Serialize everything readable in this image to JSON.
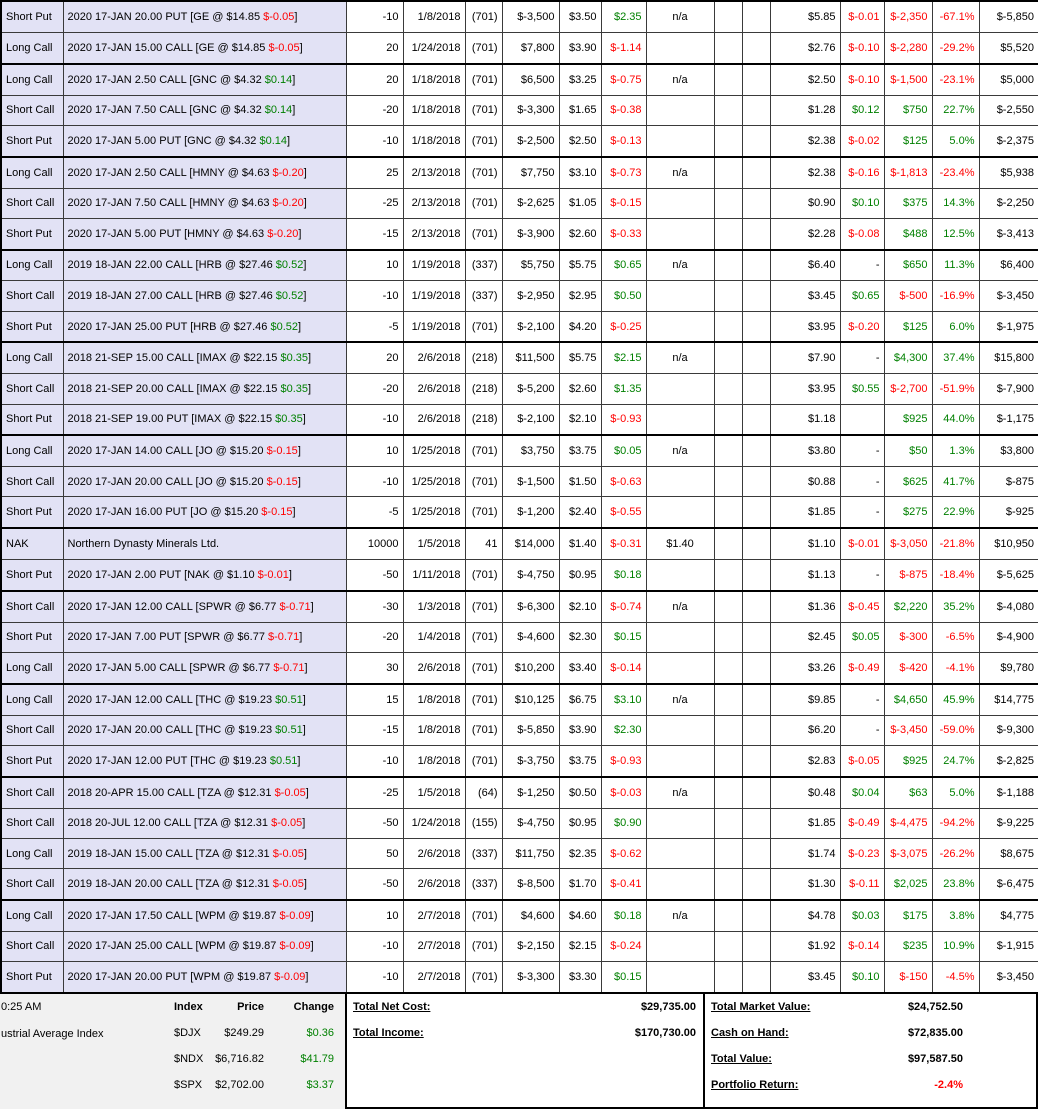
{
  "table": {
    "rows": [
      {
        "gs": 1,
        "type": "Short Put",
        "desc": "2020 17-JAN 20.00 PUT [GE @ $14.85 ",
        "uchg": "$-0.05",
        "qty": "-10",
        "date": "1/8/2018",
        "days": "(701)",
        "cost": "$-3,500",
        "price": "$3.50",
        "chg": "$2.35",
        "ref": "n/a",
        "cur": "$5.85",
        "dchg": "$-0.01",
        "gain": "$-2,350",
        "pct": "-67.1%",
        "val": "$-5,850"
      },
      {
        "gs": 0,
        "type": "Long Call",
        "desc": "2020 17-JAN 15.00 CALL [GE @ $14.85 ",
        "uchg": "$-0.05",
        "qty": "20",
        "date": "1/24/2018",
        "days": "(701)",
        "cost": "$7,800",
        "price": "$3.90",
        "chg": "$-1.14",
        "ref": "",
        "cur": "$2.76",
        "dchg": "$-0.10",
        "gain": "$-2,280",
        "pct": "-29.2%",
        "val": "$5,520"
      },
      {
        "gs": 1,
        "type": "Long Call",
        "desc": "2020 17-JAN 2.50 CALL [GNC @ $4.32 ",
        "uchg": "$0.14",
        "qty": "20",
        "date": "1/18/2018",
        "days": "(701)",
        "cost": "$6,500",
        "price": "$3.25",
        "chg": "$-0.75",
        "ref": "n/a",
        "cur": "$2.50",
        "dchg": "$-0.10",
        "gain": "$-1,500",
        "pct": "-23.1%",
        "val": "$5,000"
      },
      {
        "gs": 0,
        "type": "Short Call",
        "desc": "2020 17-JAN 7.50 CALL [GNC @ $4.32 ",
        "uchg": "$0.14",
        "qty": "-20",
        "date": "1/18/2018",
        "days": "(701)",
        "cost": "$-3,300",
        "price": "$1.65",
        "chg": "$-0.38",
        "ref": "",
        "cur": "$1.28",
        "dchg": "$0.12",
        "gain": "$750",
        "pct": "22.7%",
        "val": "$-2,550"
      },
      {
        "gs": 0,
        "type": "Short Put",
        "desc": "2020 17-JAN 5.00 PUT [GNC @ $4.32 ",
        "uchg": "$0.14",
        "qty": "-10",
        "date": "1/18/2018",
        "days": "(701)",
        "cost": "$-2,500",
        "price": "$2.50",
        "chg": "$-0.13",
        "ref": "",
        "cur": "$2.38",
        "dchg": "$-0.02",
        "gain": "$125",
        "pct": "5.0%",
        "val": "$-2,375"
      },
      {
        "gs": 1,
        "type": "Long Call",
        "desc": "2020 17-JAN 2.50 CALL [HMNY @ $4.63 ",
        "uchg": "$-0.20",
        "qty": "25",
        "date": "2/13/2018",
        "days": "(701)",
        "cost": "$7,750",
        "price": "$3.10",
        "chg": "$-0.73",
        "ref": "n/a",
        "cur": "$2.38",
        "dchg": "$-0.16",
        "gain": "$-1,813",
        "pct": "-23.4%",
        "val": "$5,938"
      },
      {
        "gs": 0,
        "type": "Short Call",
        "desc": "2020 17-JAN 7.50 CALL [HMNY @ $4.63 ",
        "uchg": "$-0.20",
        "qty": "-25",
        "date": "2/13/2018",
        "days": "(701)",
        "cost": "$-2,625",
        "price": "$1.05",
        "chg": "$-0.15",
        "ref": "",
        "cur": "$0.90",
        "dchg": "$0.10",
        "gain": "$375",
        "pct": "14.3%",
        "val": "$-2,250"
      },
      {
        "gs": 0,
        "type": "Short Put",
        "desc": "2020 17-JAN 5.00 PUT [HMNY @ $4.63 ",
        "uchg": "$-0.20",
        "qty": "-15",
        "date": "2/13/2018",
        "days": "(701)",
        "cost": "$-3,900",
        "price": "$2.60",
        "chg": "$-0.33",
        "ref": "",
        "cur": "$2.28",
        "dchg": "$-0.08",
        "gain": "$488",
        "pct": "12.5%",
        "val": "$-3,413"
      },
      {
        "gs": 1,
        "type": "Long Call",
        "desc": "2019 18-JAN 22.00 CALL [HRB @ $27.46 ",
        "uchg": "$0.52",
        "qty": "10",
        "date": "1/19/2018",
        "days": "(337)",
        "cost": "$5,750",
        "price": "$5.75",
        "chg": "$0.65",
        "ref": "n/a",
        "cur": "$6.40",
        "dchg": "-",
        "gain": "$650",
        "pct": "11.3%",
        "val": "$6,400"
      },
      {
        "gs": 0,
        "type": "Short Call",
        "desc": "2019 18-JAN 27.00 CALL [HRB @ $27.46 ",
        "uchg": "$0.52",
        "qty": "-10",
        "date": "1/19/2018",
        "days": "(337)",
        "cost": "$-2,950",
        "price": "$2.95",
        "chg": "$0.50",
        "ref": "",
        "cur": "$3.45",
        "dchg": "$0.65",
        "gain": "$-500",
        "pct": "-16.9%",
        "val": "$-3,450"
      },
      {
        "gs": 0,
        "type": "Short Put",
        "desc": "2020 17-JAN 25.00 PUT [HRB @ $27.46 ",
        "uchg": "$0.52",
        "qty": "-5",
        "date": "1/19/2018",
        "days": "(701)",
        "cost": "$-2,100",
        "price": "$4.20",
        "chg": "$-0.25",
        "ref": "",
        "cur": "$3.95",
        "dchg": "$-0.20",
        "gain": "$125",
        "pct": "6.0%",
        "val": "$-1,975"
      },
      {
        "gs": 1,
        "type": "Long Call",
        "desc": "2018 21-SEP 15.00 CALL [IMAX @ $22.15 ",
        "uchg": "$0.35",
        "qty": "20",
        "date": "2/6/2018",
        "days": "(218)",
        "cost": "$11,500",
        "price": "$5.75",
        "chg": "$2.15",
        "ref": "n/a",
        "cur": "$7.90",
        "dchg": "-",
        "gain": "$4,300",
        "pct": "37.4%",
        "val": "$15,800"
      },
      {
        "gs": 0,
        "type": "Short Call",
        "desc": "2018 21-SEP 20.00 CALL [IMAX @ $22.15 ",
        "uchg": "$0.35",
        "qty": "-20",
        "date": "2/6/2018",
        "days": "(218)",
        "cost": "$-5,200",
        "price": "$2.60",
        "chg": "$1.35",
        "ref": "",
        "cur": "$3.95",
        "dchg": "$0.55",
        "gain": "$-2,700",
        "pct": "-51.9%",
        "val": "$-7,900"
      },
      {
        "gs": 0,
        "type": "Short Put",
        "desc": "2018 21-SEP 19.00 PUT [IMAX @ $22.15 ",
        "uchg": "$0.35",
        "qty": "-10",
        "date": "2/6/2018",
        "days": "(218)",
        "cost": "$-2,100",
        "price": "$2.10",
        "chg": "$-0.93",
        "ref": "",
        "cur": "$1.18",
        "dchg": "",
        "gain": "$925",
        "pct": "44.0%",
        "val": "$-1,175"
      },
      {
        "gs": 1,
        "type": "Long Call",
        "desc": "2020 17-JAN 14.00 CALL [JO @ $15.20 ",
        "uchg": "$-0.15",
        "qty": "10",
        "date": "1/25/2018",
        "days": "(701)",
        "cost": "$3,750",
        "price": "$3.75",
        "chg": "$0.05",
        "ref": "n/a",
        "cur": "$3.80",
        "dchg": "-",
        "gain": "$50",
        "pct": "1.3%",
        "val": "$3,800"
      },
      {
        "gs": 0,
        "type": "Short Call",
        "desc": "2020 17-JAN 20.00 CALL [JO @ $15.20 ",
        "uchg": "$-0.15",
        "qty": "-10",
        "date": "1/25/2018",
        "days": "(701)",
        "cost": "$-1,500",
        "price": "$1.50",
        "chg": "$-0.63",
        "ref": "",
        "cur": "$0.88",
        "dchg": "-",
        "gain": "$625",
        "pct": "41.7%",
        "val": "$-875"
      },
      {
        "gs": 0,
        "type": "Short Put",
        "desc": "2020 17-JAN 16.00 PUT [JO @ $15.20 ",
        "uchg": "$-0.15",
        "qty": "-5",
        "date": "1/25/2018",
        "days": "(701)",
        "cost": "$-1,200",
        "price": "$2.40",
        "chg": "$-0.55",
        "ref": "",
        "cur": "$1.85",
        "dchg": "-",
        "gain": "$275",
        "pct": "22.9%",
        "val": "$-925"
      },
      {
        "gs": 1,
        "type": "NAK",
        "desc": "Northern Dynasty Minerals Ltd.",
        "uchg": "",
        "qty": "10000",
        "date": "1/5/2018",
        "days": "41",
        "cost": "$14,000",
        "price": "$1.40",
        "chg": "$-0.31",
        "ref": "$1.40",
        "cur": "$1.10",
        "dchg": "$-0.01",
        "gain": "$-3,050",
        "pct": "-21.8%",
        "val": "$10,950"
      },
      {
        "gs": 0,
        "type": "Short Put",
        "desc": "2020 17-JAN 2.00 PUT [NAK @ $1.10 ",
        "uchg": "$-0.01",
        "qty": "-50",
        "date": "1/11/2018",
        "days": "(701)",
        "cost": "$-4,750",
        "price": "$0.95",
        "chg": "$0.18",
        "ref": "",
        "cur": "$1.13",
        "dchg": "-",
        "gain": "$-875",
        "pct": "-18.4%",
        "val": "$-5,625"
      },
      {
        "gs": 1,
        "type": "Short Call",
        "desc": "2020 17-JAN 12.00 CALL [SPWR @ $6.77 ",
        "uchg": "$-0.71",
        "qty": "-30",
        "date": "1/3/2018",
        "days": "(701)",
        "cost": "$-6,300",
        "price": "$2.10",
        "chg": "$-0.74",
        "ref": "n/a",
        "cur": "$1.36",
        "dchg": "$-0.45",
        "gain": "$2,220",
        "pct": "35.2%",
        "val": "$-4,080"
      },
      {
        "gs": 0,
        "type": "Short Put",
        "desc": "2020 17-JAN 7.00 PUT [SPWR @ $6.77 ",
        "uchg": "$-0.71",
        "qty": "-20",
        "date": "1/4/2018",
        "days": "(701)",
        "cost": "$-4,600",
        "price": "$2.30",
        "chg": "$0.15",
        "ref": "",
        "cur": "$2.45",
        "dchg": "$0.05",
        "gain": "$-300",
        "pct": "-6.5%",
        "val": "$-4,900"
      },
      {
        "gs": 0,
        "type": "Long Call",
        "desc": "2020 17-JAN 5.00 CALL [SPWR @ $6.77 ",
        "uchg": "$-0.71",
        "qty": "30",
        "date": "2/6/2018",
        "days": "(701)",
        "cost": "$10,200",
        "price": "$3.40",
        "chg": "$-0.14",
        "ref": "",
        "cur": "$3.26",
        "dchg": "$-0.49",
        "gain": "$-420",
        "pct": "-4.1%",
        "val": "$9,780"
      },
      {
        "gs": 1,
        "type": "Long Call",
        "desc": "2020 17-JAN 12.00 CALL [THC @ $19.23 ",
        "uchg": "$0.51",
        "qty": "15",
        "date": "1/8/2018",
        "days": "(701)",
        "cost": "$10,125",
        "price": "$6.75",
        "chg": "$3.10",
        "ref": "n/a",
        "cur": "$9.85",
        "dchg": "-",
        "gain": "$4,650",
        "pct": "45.9%",
        "val": "$14,775"
      },
      {
        "gs": 0,
        "type": "Short Call",
        "desc": "2020 17-JAN 20.00 CALL [THC @ $19.23 ",
        "uchg": "$0.51",
        "qty": "-15",
        "date": "1/8/2018",
        "days": "(701)",
        "cost": "$-5,850",
        "price": "$3.90",
        "chg": "$2.30",
        "ref": "",
        "cur": "$6.20",
        "dchg": "-",
        "gain": "$-3,450",
        "pct": "-59.0%",
        "val": "$-9,300"
      },
      {
        "gs": 0,
        "type": "Short Put",
        "desc": "2020 17-JAN 12.00 PUT [THC @ $19.23 ",
        "uchg": "$0.51",
        "qty": "-10",
        "date": "1/8/2018",
        "days": "(701)",
        "cost": "$-3,750",
        "price": "$3.75",
        "chg": "$-0.93",
        "ref": "",
        "cur": "$2.83",
        "dchg": "$-0.05",
        "gain": "$925",
        "pct": "24.7%",
        "val": "$-2,825"
      },
      {
        "gs": 1,
        "type": "Short Call",
        "desc": "2018 20-APR 15.00 CALL [TZA @ $12.31 ",
        "uchg": "$-0.05",
        "qty": "-25",
        "date": "1/5/2018",
        "days": "(64)",
        "cost": "$-1,250",
        "price": "$0.50",
        "chg": "$-0.03",
        "ref": "n/a",
        "cur": "$0.48",
        "dchg": "$0.04",
        "gain": "$63",
        "pct": "5.0%",
        "val": "$-1,188"
      },
      {
        "gs": 0,
        "type": "Short Call",
        "desc": "2018 20-JUL 12.00 CALL [TZA @ $12.31 ",
        "uchg": "$-0.05",
        "qty": "-50",
        "date": "1/24/2018",
        "days": "(155)",
        "cost": "$-4,750",
        "price": "$0.95",
        "chg": "$0.90",
        "ref": "",
        "cur": "$1.85",
        "dchg": "$-0.49",
        "gain": "$-4,475",
        "pct": "-94.2%",
        "val": "$-9,225"
      },
      {
        "gs": 0,
        "type": "Long Call",
        "desc": "2019 18-JAN 15.00 CALL [TZA @ $12.31 ",
        "uchg": "$-0.05",
        "qty": "50",
        "date": "2/6/2018",
        "days": "(337)",
        "cost": "$11,750",
        "price": "$2.35",
        "chg": "$-0.62",
        "ref": "",
        "cur": "$1.74",
        "dchg": "$-0.23",
        "gain": "$-3,075",
        "pct": "-26.2%",
        "val": "$8,675"
      },
      {
        "gs": 0,
        "type": "Short Call",
        "desc": "2019 18-JAN 20.00 CALL [TZA @ $12.31 ",
        "uchg": "$-0.05",
        "qty": "-50",
        "date": "2/6/2018",
        "days": "(337)",
        "cost": "$-8,500",
        "price": "$1.70",
        "chg": "$-0.41",
        "ref": "",
        "cur": "$1.30",
        "dchg": "$-0.11",
        "gain": "$2,025",
        "pct": "23.8%",
        "val": "$-6,475"
      },
      {
        "gs": 1,
        "type": "Long Call",
        "desc": "2020 17-JAN 17.50 CALL [WPM @ $19.87 ",
        "uchg": "$-0.09",
        "qty": "10",
        "date": "2/7/2018",
        "days": "(701)",
        "cost": "$4,600",
        "price": "$4.60",
        "chg": "$0.18",
        "ref": "n/a",
        "cur": "$4.78",
        "dchg": "$0.03",
        "gain": "$175",
        "pct": "3.8%",
        "val": "$4,775"
      },
      {
        "gs": 0,
        "type": "Short Call",
        "desc": "2020 17-JAN 25.00 CALL [WPM @ $19.87 ",
        "uchg": "$-0.09",
        "qty": "-10",
        "date": "2/7/2018",
        "days": "(701)",
        "cost": "$-2,150",
        "price": "$2.15",
        "chg": "$-0.24",
        "ref": "",
        "cur": "$1.92",
        "dchg": "$-0.14",
        "gain": "$235",
        "pct": "10.9%",
        "val": "$-1,915"
      },
      {
        "gs": 0,
        "type": "Short Put",
        "desc": "2020 17-JAN 20.00 PUT [WPM @ $19.87 ",
        "uchg": "$-0.09",
        "qty": "-10",
        "date": "2/7/2018",
        "days": "(701)",
        "cost": "$-3,300",
        "price": "$3.30",
        "chg": "$0.15",
        "ref": "",
        "cur": "$3.45",
        "dchg": "$0.10",
        "gain": "$-150",
        "pct": "-4.5%",
        "val": "$-3,450"
      }
    ]
  },
  "footer": {
    "time": "0:25 AM",
    "index_desc": "ustrial Average Index",
    "index_table": {
      "headers": [
        "Index",
        "Price",
        "Change"
      ],
      "rows": [
        {
          "name": "$DJX",
          "price": "$249.29",
          "change": "$0.36"
        },
        {
          "name": "$NDX",
          "price": "$6,716.82",
          "change": "$41.79"
        },
        {
          "name": "$SPX",
          "price": "$2,702.00",
          "change": "$3.37"
        }
      ]
    },
    "totals_mid": [
      {
        "label": "Total Net Cost:",
        "value": "$29,735.00"
      },
      {
        "label": "Total Income:",
        "value": "$170,730.00"
      }
    ],
    "totals_right": [
      {
        "label": "Total Market Value:",
        "value": "$24,752.50"
      },
      {
        "label": "Cash on Hand:",
        "value": "$72,835.00"
      },
      {
        "label": "Total Value:",
        "value": "$97,587.50"
      },
      {
        "label": "Portfolio Return:",
        "value": "-2.4%"
      }
    ]
  }
}
